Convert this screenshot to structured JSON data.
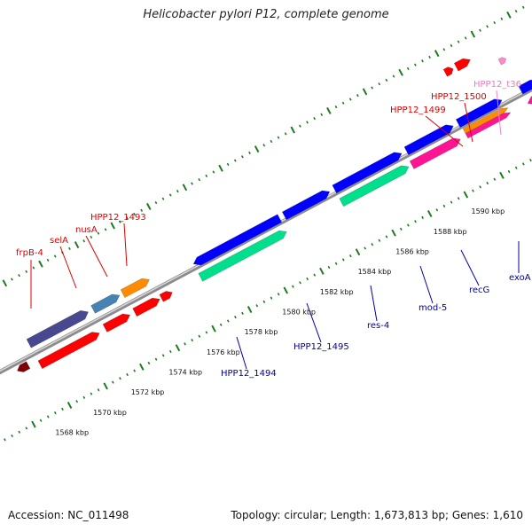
{
  "title": "Helicobacter pylori P12, complete genome",
  "footer": {
    "accession": "Accession: NC_011498",
    "summary": "Topology: circular; Length: 1,673,813 bp; Genes: 1,610"
  },
  "colors": {
    "backbone": "#8c8c8c",
    "tick": "#1f7a1f",
    "label_red": "#dd0000",
    "label_blue": "#000099",
    "label_pink": "#ee77bb",
    "line_red": "#dd0000",
    "line_blue": "#0000aa",
    "line_pink": "#ee88cc"
  },
  "scale": {
    "tick_labels": [
      "1568 kbp",
      "1570 kbp",
      "1572 kbp",
      "1574 kbp",
      "1576 kbp",
      "1578 kbp",
      "1580 kbp",
      "1582 kbp",
      "1584 kbp",
      "1586 kbp",
      "1588 kbp",
      "1590 kbp"
    ]
  },
  "features": [
    {
      "name": "",
      "color": "#7f0000"
    },
    {
      "name": "",
      "color": "#484890"
    },
    {
      "name": "",
      "color": "#ff0000"
    },
    {
      "name": "",
      "color": "#4682b4"
    },
    {
      "name": "",
      "color": "#ff8c00"
    },
    {
      "name": "",
      "color": "#ff0000"
    },
    {
      "name": "",
      "color": "#ff0000"
    },
    {
      "name": "",
      "color": "#ff0000"
    },
    {
      "name": "",
      "color": "#0000ff"
    },
    {
      "name": "",
      "color": "#00e08c"
    },
    {
      "name": "",
      "color": "#0000ff"
    },
    {
      "name": "",
      "color": "#0000ff"
    },
    {
      "name": "",
      "color": "#00e08c"
    },
    {
      "name": "",
      "color": "#0000ff"
    },
    {
      "name": "",
      "color": "#ff1493"
    },
    {
      "name": "",
      "color": "#0000ff"
    },
    {
      "name": "",
      "color": "#ff8c00"
    },
    {
      "name": "",
      "color": "#ff1493"
    },
    {
      "name": "",
      "color": "#ff0000"
    },
    {
      "name": "",
      "color": "#ff0000"
    },
    {
      "name": "",
      "color": "#ff88cc"
    },
    {
      "name": "",
      "color": "#0000ff"
    },
    {
      "name": "",
      "color": "#ff1493"
    },
    {
      "name": "",
      "color": "#0000ff"
    }
  ],
  "gene_labels": [
    {
      "text": "frpB-4",
      "tone": "red"
    },
    {
      "text": "selA",
      "tone": "red"
    },
    {
      "text": "nusA",
      "tone": "red"
    },
    {
      "text": "HPP12_1493",
      "tone": "red"
    },
    {
      "text": "HPP12_1499",
      "tone": "red"
    },
    {
      "text": "HPP12_1500",
      "tone": "red"
    },
    {
      "text": "HPP12_t36",
      "tone": "pink"
    },
    {
      "text": "HPP12_1494",
      "tone": "blue"
    },
    {
      "text": "HPP12_1495",
      "tone": "blue"
    },
    {
      "text": "res-4",
      "tone": "blue"
    },
    {
      "text": "mod-5",
      "tone": "blue"
    },
    {
      "text": "recG",
      "tone": "blue"
    },
    {
      "text": "exoA",
      "tone": "blue"
    }
  ]
}
